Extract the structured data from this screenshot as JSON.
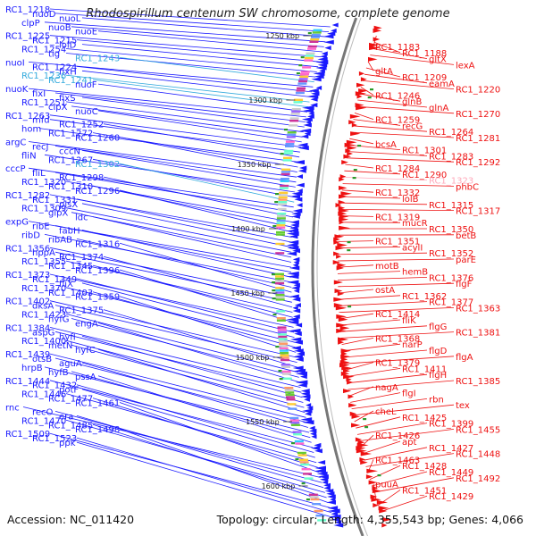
{
  "title": "Rhodospirillum centenum SW chromosome, complete genome",
  "footer": {
    "accession": "Accession: NC_011420",
    "summary": "Topology: circular; Length: 4,355,543 bp; Genes: 4,066"
  },
  "colors": {
    "forward": "#1a1aff",
    "reverse": "#ee1111",
    "highlight_blue": "#33aadd",
    "highlight_pink": "#ffaabb",
    "backbone": "#777777",
    "marker": "#2a9a2a"
  },
  "scale_marks": [
    "1250 kbp",
    "1300 kbp",
    "1350 kbp",
    "1400 kbp",
    "1450 kbp",
    "1500 kbp",
    "1550 kbp",
    "1600 kbp"
  ],
  "left_labels": [
    {
      "text": "RC1_1218"
    },
    {
      "text": "nuoD"
    },
    {
      "text": "nuoL"
    },
    {
      "text": "clpP"
    },
    {
      "text": "nuoB"
    },
    {
      "text": "nuoE"
    },
    {
      "text": "RC1_1225"
    },
    {
      "text": "RC1_1215"
    },
    {
      "text": "lolD"
    },
    {
      "text": "RC1_1254"
    },
    {
      "text": "tig"
    },
    {
      "text": "RC1_1243",
      "hl": "blue"
    },
    {
      "text": "nuoI"
    },
    {
      "text": "RC1_1224"
    },
    {
      "text": "fixH"
    },
    {
      "text": "RC1_1236",
      "hl": "blue"
    },
    {
      "text": "RC1_1241",
      "hl": "blue"
    },
    {
      "text": "nuoF"
    },
    {
      "text": "nuoK"
    },
    {
      "text": "fixI"
    },
    {
      "text": "fixS"
    },
    {
      "text": "RC1_1251"
    },
    {
      "text": "clpX"
    },
    {
      "text": "nuoC"
    },
    {
      "text": "RC1_1263"
    },
    {
      "text": "mfd"
    },
    {
      "text": "RC1_1252"
    },
    {
      "text": "hom"
    },
    {
      "text": "RC1_1272"
    },
    {
      "text": "RC1_1260"
    },
    {
      "text": "argC"
    },
    {
      "text": "recJ"
    },
    {
      "text": "cccN"
    },
    {
      "text": "fliN"
    },
    {
      "text": "RC1_1267"
    },
    {
      "text": "RC1_1302",
      "hl": "blue"
    },
    {
      "text": "cccP"
    },
    {
      "text": "fliL"
    },
    {
      "text": "RC1_1298"
    },
    {
      "text": "RC1_1320"
    },
    {
      "text": "RC1_1310"
    },
    {
      "text": "RC1_1296"
    },
    {
      "text": "RC1_1282"
    },
    {
      "text": "RC1_1331"
    },
    {
      "text": "plsX"
    },
    {
      "text": "RC1_1309"
    },
    {
      "text": "glpX"
    },
    {
      "text": "ldc"
    },
    {
      "text": "expG"
    },
    {
      "text": "ribE"
    },
    {
      "text": "fabH"
    },
    {
      "text": "ribD"
    },
    {
      "text": "ribAB"
    },
    {
      "text": "RC1_1316"
    },
    {
      "text": "RC1_1356"
    },
    {
      "text": "hppA"
    },
    {
      "text": "RC1_1374"
    },
    {
      "text": "RC1_1355"
    },
    {
      "text": "RC1_1345"
    },
    {
      "text": "RC1_1396"
    },
    {
      "text": "RC1_1373"
    },
    {
      "text": "RC1_1349"
    },
    {
      "text": "fliX"
    },
    {
      "text": "RC1_1370"
    },
    {
      "text": "RC1_1403"
    },
    {
      "text": "RC1_1359"
    },
    {
      "text": "RC1_1402"
    },
    {
      "text": "dksA"
    },
    {
      "text": "RC1_1375"
    },
    {
      "text": "RC1_1423"
    },
    {
      "text": "hyfG"
    },
    {
      "text": "engA"
    },
    {
      "text": "RC1_1384"
    },
    {
      "text": "aspG"
    },
    {
      "text": "hyfI"
    },
    {
      "text": "RC1_1400"
    },
    {
      "text": "metN"
    },
    {
      "text": "hyfC"
    },
    {
      "text": "RC1_1439"
    },
    {
      "text": "otsB"
    },
    {
      "text": "aguA"
    },
    {
      "text": "hrpB"
    },
    {
      "text": "hyfB"
    },
    {
      "text": "pssA"
    },
    {
      "text": "RC1_1444"
    },
    {
      "text": "RC1_1432"
    },
    {
      "text": "potF"
    },
    {
      "text": "RC1_1446"
    },
    {
      "text": "RC1_1477"
    },
    {
      "text": "RC1_1461"
    },
    {
      "text": "rnc"
    },
    {
      "text": "recO"
    },
    {
      "text": "era"
    },
    {
      "text": "RC1_1470"
    },
    {
      "text": "RC1_1485"
    },
    {
      "text": "RC1_1498"
    },
    {
      "text": "RC1_1509"
    },
    {
      "text": "RC1_1523"
    },
    {
      "text": "ppk"
    }
  ],
  "right_labels": [
    {
      "text": "RC1_1183"
    },
    {
      "text": "RC1_1188"
    },
    {
      "text": "gltX"
    },
    {
      "text": "lexA"
    },
    {
      "text": "gltA"
    },
    {
      "text": "RC1_1209"
    },
    {
      "text": "eamA"
    },
    {
      "text": "RC1_1220"
    },
    {
      "text": "RC1_1246"
    },
    {
      "text": "glnB"
    },
    {
      "text": "glnA"
    },
    {
      "text": "RC1_1270"
    },
    {
      "text": "RC1_1259"
    },
    {
      "text": "recG"
    },
    {
      "text": "RC1_1264"
    },
    {
      "text": "RC1_1281"
    },
    {
      "text": "bcsA"
    },
    {
      "text": "RC1_1301"
    },
    {
      "text": "RC1_1283"
    },
    {
      "text": "RC1_1292"
    },
    {
      "text": "RC1_1284"
    },
    {
      "text": "RC1_1290"
    },
    {
      "text": "RC1_1323",
      "hl": "pink"
    },
    {
      "text": "phbC"
    },
    {
      "text": "RC1_1332"
    },
    {
      "text": "lolB"
    },
    {
      "text": "RC1_1315"
    },
    {
      "text": "RC1_1317"
    },
    {
      "text": "RC1_1319"
    },
    {
      "text": "mucR"
    },
    {
      "text": "RC1_1350"
    },
    {
      "text": "betB"
    },
    {
      "text": "RC1_1351"
    },
    {
      "text": "acylI"
    },
    {
      "text": "RC1_1352"
    },
    {
      "text": "parE"
    },
    {
      "text": "motB"
    },
    {
      "text": "hemB"
    },
    {
      "text": "RC1_1376"
    },
    {
      "text": "flgF"
    },
    {
      "text": "ostA"
    },
    {
      "text": "RC1_1362"
    },
    {
      "text": "RC1_1377"
    },
    {
      "text": "RC1_1363"
    },
    {
      "text": "RC1_1414"
    },
    {
      "text": "fliK"
    },
    {
      "text": "flgG"
    },
    {
      "text": "RC1_1381"
    },
    {
      "text": "RC1_1368"
    },
    {
      "text": "narP"
    },
    {
      "text": "flgD"
    },
    {
      "text": "flgA"
    },
    {
      "text": "RC1_1379"
    },
    {
      "text": "RC1_1411"
    },
    {
      "text": "flgH"
    },
    {
      "text": "RC1_1385"
    },
    {
      "text": "nagA"
    },
    {
      "text": "flgI"
    },
    {
      "text": "rbn"
    },
    {
      "text": "tex"
    },
    {
      "text": "cheL"
    },
    {
      "text": "RC1_1425"
    },
    {
      "text": "RC1_1399"
    },
    {
      "text": "RC1_1455"
    },
    {
      "text": "RC1_1426"
    },
    {
      "text": "apt"
    },
    {
      "text": "RC1_1427"
    },
    {
      "text": "RC1_1448"
    },
    {
      "text": "RC1_1463"
    },
    {
      "text": "RC1_1428"
    },
    {
      "text": "RC1_1449"
    },
    {
      "text": "RC1_1492"
    },
    {
      "text": "puuA"
    },
    {
      "text": "RC1_1451"
    },
    {
      "text": "RC1_1429"
    }
  ]
}
